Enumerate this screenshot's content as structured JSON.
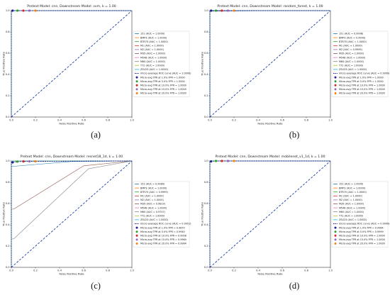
{
  "chart_data": [
    {
      "type": "line",
      "panel": "a",
      "caption": "(a)",
      "title": "Pretext Model: cnn, Downstream Model: svm, k = 1.00",
      "xlabel": "False Positive Rate",
      "ylabel": "True Positive Rate",
      "xlim": [
        0,
        1
      ],
      "ylim": [
        0,
        1
      ],
      "xticks": [
        "0.0",
        "0.2",
        "0.4",
        "0.6",
        "0.8",
        "1.0"
      ],
      "yticks": [
        "0.0",
        "0.2",
        "0.4",
        "0.6",
        "0.8",
        "1.0"
      ],
      "legend_position": "right",
      "legend": [
        "151 (AUC = 1.0000)",
        "BMP3 (AUC = 1.0000)",
        "BTR70 (AUC = 1.0000)",
        "M1 (AUC = 1.0000)",
        "M2 (AUC = 1.0000)",
        "M35 (AUC = 1.0000)",
        "M548 (AUC = 1.0000)",
        "M60 (AUC = 1.0000)",
        "T72 (AUC = 1.0000)",
        "ZSU23 (AUC = 1.0000)",
        "micro-average ROC curve (AUC = 1.0000)",
        "Micro-avg TPR at 1.0% FPR = 1.0000",
        "Micro-avg TPR at 5.0% FPR = 1.0000",
        "Micro-avg TPR at 10.0% FPR = 1.0000",
        "Micro-avg TPR at 15.0% FPR = 1.0000",
        "Micro-avg TPR at 20.0% FPR = 1.0000"
      ],
      "markers": [
        {
          "fpr": 0.01,
          "tpr": 1.0
        },
        {
          "fpr": 0.05,
          "tpr": 1.0
        },
        {
          "fpr": 0.1,
          "tpr": 1.0
        },
        {
          "fpr": 0.15,
          "tpr": 1.0
        },
        {
          "fpr": 0.2,
          "tpr": 1.0
        }
      ]
    },
    {
      "type": "line",
      "panel": "b",
      "caption": "(b)",
      "title": "Pretext Model: cnn, Downstream Model: random_forest, k = 1.00",
      "xlabel": "False Positive Rate",
      "ylabel": "True Positive Rate",
      "xlim": [
        0,
        1
      ],
      "ylim": [
        0,
        1
      ],
      "xticks": [
        "0.0",
        "0.2",
        "0.4",
        "0.6",
        "0.8",
        "1.0"
      ],
      "yticks": [
        "0.0",
        "0.2",
        "0.4",
        "0.6",
        "0.8",
        "1.0"
      ],
      "legend_position": "right",
      "legend": [
        "151 (AUC = 0.9998)",
        "BMP3 (AUC = 0.9999)",
        "BTR70 (AUC = 1.0000)",
        "M1 (AUC = 1.0000)",
        "M2 (AUC = 0.9999)",
        "M35 (AUC = 1.0000)",
        "M548 (AUC = 1.0000)",
        "M60 (AUC = 1.0000)",
        "T72 (AUC = 1.0000)",
        "ZSU23 (AUC = 1.0000)",
        "micro-average ROC curve (AUC = 0.9999)",
        "Micro-avg TPR at 1.0% FPR = 1.0000",
        "Micro-avg TPR at 5.0% FPR = 1.0000",
        "Micro-avg TPR at 10.0% FPR = 1.0000",
        "Micro-avg TPR at 15.0% FPR = 1.0000",
        "Micro-avg TPR at 20.0% FPR = 1.0000"
      ],
      "markers": [
        {
          "fpr": 0.01,
          "tpr": 1.0
        },
        {
          "fpr": 0.05,
          "tpr": 1.0
        },
        {
          "fpr": 0.1,
          "tpr": 1.0
        },
        {
          "fpr": 0.15,
          "tpr": 1.0
        },
        {
          "fpr": 0.2,
          "tpr": 1.0
        }
      ]
    },
    {
      "type": "line",
      "panel": "c",
      "caption": "(c)",
      "title": "Pretext Model: cnn, Downstream Model: resnet18_1d, k = 1.00",
      "xlabel": "False Positive Rate",
      "ylabel": "True Positive Rate",
      "xlim": [
        0,
        1
      ],
      "ylim": [
        0,
        1
      ],
      "xticks": [
        "0.0",
        "0.2",
        "0.4",
        "0.6",
        "0.8",
        "1.0"
      ],
      "yticks": [
        "0.0",
        "0.2",
        "0.4",
        "0.6",
        "0.8",
        "1.0"
      ],
      "legend_position": "right",
      "legend": [
        "151 (AUC = 0.9980)",
        "BMP3 (AUC = 1.0000)",
        "BTR70 (AUC = 0.9999)",
        "M1 (AUC = 1.0000)",
        "M2 (AUC = 1.0000)",
        "M35 (AUC = 0.9819)",
        "M548 (AUC = 1.0000)",
        "M60 (AUC = 0.9707)",
        "T72 (AUC = 1.0000)",
        "ZSU23 (AUC = 1.0000)",
        "micro-average ROC curve (AUC = 0.9951)",
        "Micro-avg TPR at 1.0% FPR = 0.9870",
        "Micro-avg TPR at 5.0% FPR = 0.9940",
        "Micro-avg TPR at 10.0% FPR = 0.9958",
        "Micro-avg TPR at 15.0% FPR = 0.9964",
        "Micro-avg TPR at 20.0% FPR = 0.9964"
      ],
      "markers": [
        {
          "fpr": 0.01,
          "tpr": 0.987
        },
        {
          "fpr": 0.05,
          "tpr": 0.994
        },
        {
          "fpr": 0.1,
          "tpr": 0.9958
        },
        {
          "fpr": 0.15,
          "tpr": 0.9964
        },
        {
          "fpr": 0.2,
          "tpr": 0.9964
        }
      ]
    },
    {
      "type": "line",
      "panel": "d",
      "caption": "(d)",
      "title": "Pretext Model: cnn, Downstream Model: mobilenet_v1_1d, k = 1.00",
      "xlabel": "False Positive Rate",
      "ylabel": "True Positive Rate",
      "xlim": [
        0,
        1
      ],
      "ylim": [
        0,
        1
      ],
      "xticks": [
        "0.0",
        "0.2",
        "0.4",
        "0.6",
        "0.8",
        "1.0"
      ],
      "yticks": [
        "0.0",
        "0.2",
        "0.4",
        "0.6",
        "0.8",
        "1.0"
      ],
      "legend_position": "right",
      "legend": [
        "151 (AUC = 1.0000)",
        "BMP3 (AUC = 1.0000)",
        "BTR70 (AUC = 1.0000)",
        "M1 (AUC = 1.0000)",
        "M2 (AUC = 1.0000)",
        "M35 (AUC = 1.0000)",
        "M548 (AUC = 1.0000)",
        "M60 (AUC = 1.0000)",
        "T72 (AUC = 1.0000)",
        "ZSU23 (AUC = 1.0000)",
        "micro-average ROC curve (AUC = 0.9999)",
        "Micro-avg TPR at 1.0% FPR = 0.9964",
        "Micro-avg TPR at 5.0% FPR = 0.9999",
        "Micro-avg TPR at 10.0% FPR = 1.0000",
        "Micro-avg TPR at 15.0% FPR = 1.0000",
        "Micro-avg TPR at 20.0% FPR = 1.0000"
      ],
      "markers": [
        {
          "fpr": 0.01,
          "tpr": 0.9964
        },
        {
          "fpr": 0.05,
          "tpr": 0.9999
        },
        {
          "fpr": 0.1,
          "tpr": 1.0
        },
        {
          "fpr": 0.15,
          "tpr": 1.0
        },
        {
          "fpr": 0.2,
          "tpr": 1.0
        }
      ]
    }
  ],
  "colors": {
    "classes": [
      "#1f77b4",
      "#ff7f0e",
      "#2ca02c",
      "#d62728",
      "#9467bd",
      "#8c564b",
      "#e377c2",
      "#7f7f7f",
      "#bcbd22",
      "#17becf"
    ],
    "micro_average": "#1f1f8f",
    "diagonal": "#1f3fa8",
    "markers": [
      "#1f1f8f",
      "#2ca02c",
      "#d62728",
      "#9467bd",
      "#ff7f0e"
    ]
  }
}
